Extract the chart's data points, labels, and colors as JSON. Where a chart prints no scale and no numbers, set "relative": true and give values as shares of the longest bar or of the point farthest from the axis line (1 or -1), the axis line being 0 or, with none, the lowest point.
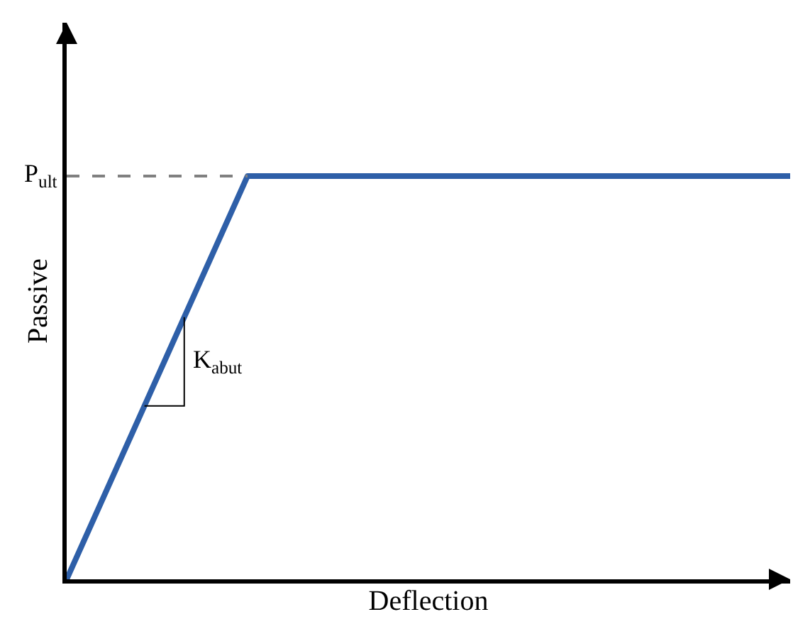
{
  "chart_data": {
    "type": "line",
    "relative": true,
    "xlabel": "Deflection",
    "ylabel": "Passive",
    "categories": [
      null,
      null,
      null,
      null,
      null,
      null,
      null,
      null,
      null
    ],
    "series": [
      {
        "color": "#2e5fa8",
        "values": [
          0,
          0.5,
          1,
          1,
          1,
          1,
          1,
          1,
          1
        ]
      }
    ],
    "ref_lines": [
      {
        "axis": "y",
        "value": 1,
        "label": "P$_{ult}$",
        "color": "#808080",
        "line_style": "dashed"
      }
    ],
    "annotations": [
      "K$_{abut}$"
    ]
  }
}
